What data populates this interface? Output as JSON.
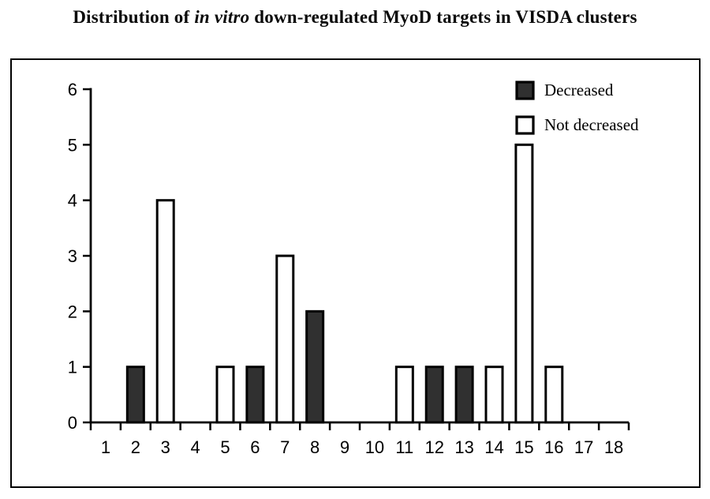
{
  "title": {
    "prefix": "Distribution of ",
    "italic": "in vitro",
    "suffix": " down-regulated MyoD targets in VISDA clusters"
  },
  "legend": {
    "items": [
      {
        "label": "Decreased",
        "color": "#303030"
      },
      {
        "label": "Not decreased",
        "color": "#ffffff"
      }
    ]
  },
  "chart_data": {
    "type": "bar",
    "title": "Distribution of in vitro down-regulated MyoD targets in VISDA clusters",
    "categories": [
      "1",
      "2",
      "3",
      "4",
      "5",
      "6",
      "7",
      "8",
      "9",
      "10",
      "11",
      "12",
      "13",
      "14",
      "15",
      "16",
      "17",
      "18"
    ],
    "series": [
      {
        "name": "Decreased",
        "color": "#303030",
        "values": [
          0,
          1,
          0,
          0,
          0,
          1,
          0,
          2,
          0,
          0,
          0,
          1,
          1,
          0,
          0,
          0,
          0,
          0
        ]
      },
      {
        "name": "Not decreased",
        "color": "#ffffff",
        "values": [
          0,
          0,
          4,
          0,
          1,
          0,
          3,
          0,
          0,
          0,
          1,
          0,
          0,
          1,
          5,
          1,
          0,
          0
        ]
      }
    ],
    "xlabel": "",
    "ylabel": "",
    "ylim": [
      0,
      6
    ],
    "yticks": [
      0,
      1,
      2,
      3,
      4,
      5,
      6
    ],
    "grid": false,
    "legend_position": "top-right",
    "bar_border_color": "#000000",
    "axis_color": "#000000"
  }
}
